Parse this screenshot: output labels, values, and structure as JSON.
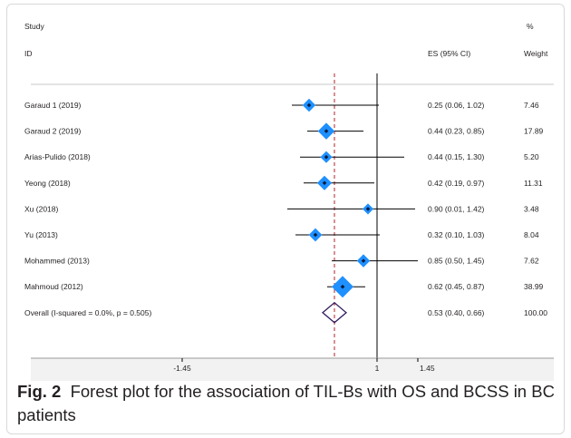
{
  "chart_data": {
    "type": "forest",
    "header": {
      "study_line1": "Study",
      "study_line2": "ID",
      "es": "ES (95% CI)",
      "weight_line1": "%",
      "weight_line2": "Weight"
    },
    "studies": [
      {
        "label": "Garaud 1 (2019)",
        "es": 0.25,
        "lo": 0.06,
        "hi": 1.02,
        "ci_text": "0.25 (0.06, 1.02)",
        "weight": "7.46"
      },
      {
        "label": "Garaud 2 (2019)",
        "es": 0.44,
        "lo": 0.23,
        "hi": 0.85,
        "ci_text": "0.44 (0.23, 0.85)",
        "weight": "17.89"
      },
      {
        "label": "Arias-Pulido (2018)",
        "es": 0.44,
        "lo": 0.15,
        "hi": 1.3,
        "ci_text": "0.44 (0.15, 1.30)",
        "weight": "5.20"
      },
      {
        "label": "Yeong (2018)",
        "es": 0.42,
        "lo": 0.19,
        "hi": 0.97,
        "ci_text": "0.42 (0.19, 0.97)",
        "weight": "11.31"
      },
      {
        "label": "Xu (2018)",
        "es": 0.9,
        "lo": 0.01,
        "hi": 1.42,
        "ci_text": "0.90 (0.01, 1.42)",
        "weight": "3.48"
      },
      {
        "label": "Yu (2013)",
        "es": 0.32,
        "lo": 0.1,
        "hi": 1.03,
        "ci_text": "0.32 (0.10, 1.03)",
        "weight": "8.04"
      },
      {
        "label": "Mohammed (2013)",
        "es": 0.85,
        "lo": 0.5,
        "hi": 1.45,
        "ci_text": "0.85 (0.50, 1.45)",
        "weight": "7.62"
      },
      {
        "label": "Mahmoud (2012)",
        "es": 0.62,
        "lo": 0.45,
        "hi": 0.87,
        "ci_text": "0.62 (0.45, 0.87)",
        "weight": "38.99"
      }
    ],
    "overall": {
      "label": "Overall  (I-squared = 0.0%, p = 0.505)",
      "es": 0.53,
      "lo": 0.4,
      "hi": 0.66,
      "ci_text": "0.53 (0.40, 0.66)",
      "weight": "100.00"
    },
    "x_ticks": [
      "-1.45",
      "1",
      "1.45"
    ],
    "null_line": 1,
    "colors": {
      "marker": "#1e90ff",
      "overall_diamond": "#2e1a5e",
      "dashed_line": "#b0202a",
      "text": "#231f20"
    }
  },
  "caption": {
    "label": "Fig. 2",
    "text": "Forest plot for the association of TIL-Bs with OS and BCSS in BC patients"
  }
}
